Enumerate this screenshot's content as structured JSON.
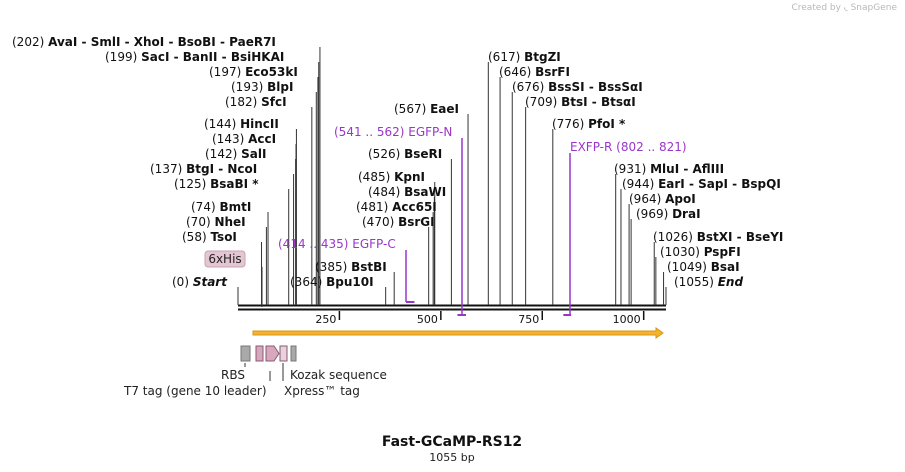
{
  "credit": {
    "prefix": "Created by",
    "brand": "SnapGene"
  },
  "plasmid": {
    "name": "Fast-GCaMP-RS12",
    "length_label": "1055 bp",
    "length_bp": 1055
  },
  "axis": {
    "ticks": [
      {
        "bp": 250,
        "label": "250"
      },
      {
        "bp": 500,
        "label": "500"
      },
      {
        "bp": 750,
        "label": "750"
      },
      {
        "bp": 1000,
        "label": "1000"
      }
    ]
  },
  "enzymes": [
    {
      "bp": 202,
      "pos": "(202)",
      "names": [
        "AvaI",
        "SmlI",
        "XhoI",
        "BsoBI",
        "PaeR7I"
      ]
    },
    {
      "bp": 199,
      "pos": "(199)",
      "names": [
        "SacI",
        "BanII",
        "BsiHKAI"
      ]
    },
    {
      "bp": 197,
      "pos": "(197)",
      "names": [
        "Eco53kI"
      ]
    },
    {
      "bp": 193,
      "pos": "(193)",
      "names": [
        "BlpI"
      ]
    },
    {
      "bp": 182,
      "pos": "(182)",
      "names": [
        "SfcI"
      ]
    },
    {
      "bp": 144,
      "pos": "(144)",
      "names": [
        "HincII"
      ]
    },
    {
      "bp": 143,
      "pos": "(143)",
      "names": [
        "AccI"
      ]
    },
    {
      "bp": 142,
      "pos": "(142)",
      "names": [
        "SalI"
      ]
    },
    {
      "bp": 137,
      "pos": "(137)",
      "names": [
        "BtgI",
        "NcoI"
      ]
    },
    {
      "bp": 125,
      "pos": "(125)",
      "names": [
        "BsaBI *"
      ]
    },
    {
      "bp": 74,
      "pos": "(74)",
      "names": [
        "BmtI"
      ]
    },
    {
      "bp": 70,
      "pos": "(70)",
      "names": [
        "NheI"
      ]
    },
    {
      "bp": 58,
      "pos": "(58)",
      "names": [
        "TsoI"
      ]
    },
    {
      "bp": 0,
      "pos": "(0)",
      "names": [
        "Start"
      ],
      "italic": true
    },
    {
      "bp": 385,
      "pos": "(385)",
      "names": [
        "BstBI"
      ]
    },
    {
      "bp": 364,
      "pos": "(364)",
      "names": [
        "Bpu10I"
      ]
    },
    {
      "bp": 567,
      "pos": "(567)",
      "names": [
        "EaeI"
      ]
    },
    {
      "bp": 526,
      "pos": "(526)",
      "names": [
        "BseRI"
      ]
    },
    {
      "bp": 485,
      "pos": "(485)",
      "names": [
        "KpnI"
      ]
    },
    {
      "bp": 484,
      "pos": "(484)",
      "names": [
        "BsaWI"
      ]
    },
    {
      "bp": 481,
      "pos": "(481)",
      "names": [
        "Acc65I"
      ]
    },
    {
      "bp": 470,
      "pos": "(470)",
      "names": [
        "BsrGI"
      ]
    },
    {
      "bp": 617,
      "pos": "(617)",
      "names": [
        "BtgZI"
      ]
    },
    {
      "bp": 646,
      "pos": "(646)",
      "names": [
        "BsrFI"
      ]
    },
    {
      "bp": 676,
      "pos": "(676)",
      "names": [
        "BssSI",
        "BssSαI"
      ]
    },
    {
      "bp": 709,
      "pos": "(709)",
      "names": [
        "BtsI",
        "BtsαI"
      ]
    },
    {
      "bp": 776,
      "pos": "(776)",
      "names": [
        "PfoI *"
      ]
    },
    {
      "bp": 931,
      "pos": "(931)",
      "names": [
        "MluI",
        "AflIII"
      ]
    },
    {
      "bp": 944,
      "pos": "(944)",
      "names": [
        "EarI",
        "SapI",
        "BspQI"
      ]
    },
    {
      "bp": 964,
      "pos": "(964)",
      "names": [
        "ApoI"
      ]
    },
    {
      "bp": 969,
      "pos": "(969)",
      "names": [
        "DraI"
      ]
    },
    {
      "bp": 1026,
      "pos": "(1026)",
      "names": [
        "BstXI",
        "BseYI"
      ]
    },
    {
      "bp": 1030,
      "pos": "(1030)",
      "names": [
        "PspFI"
      ]
    },
    {
      "bp": 1049,
      "pos": "(1049)",
      "names": [
        "BsaI"
      ]
    },
    {
      "bp": 1055,
      "pos": "(1055)",
      "names": [
        "End"
      ],
      "italic": true
    }
  ],
  "primers": [
    {
      "name": "EGFP-C",
      "range": "(414 .. 435)",
      "bp_start": 414,
      "bp_end": 435,
      "strand": "top"
    },
    {
      "name": "EGFP-N",
      "range": "(541 .. 562)",
      "bp_start": 541,
      "bp_end": 562,
      "strand": "bottom"
    },
    {
      "name": "EXFP-R",
      "range": "(802 .. 821)",
      "bp_start": 802,
      "bp_end": 821,
      "strand": "bottom"
    }
  ],
  "features": [
    {
      "name": "6xHis",
      "kind": "box-label",
      "color": "#e4c6d2"
    },
    {
      "name": "RBS",
      "kind": "block",
      "color": "#a9a9a9"
    },
    {
      "name": "T7 tag (gene 10 leader)",
      "kind": "block",
      "color": "#d6a7bd"
    },
    {
      "name": "Xpress™ tag",
      "kind": "arrow",
      "color": "#d6a7bd"
    },
    {
      "name": "Kozak sequence",
      "kind": "block",
      "color": "#a9a9a9"
    }
  ],
  "orf_arrow": {
    "color": "#f4b42c",
    "stroke": "#d9941a"
  },
  "colors": {
    "primer": "#9a36c9",
    "backbone": "#111111",
    "line": "#333333"
  }
}
